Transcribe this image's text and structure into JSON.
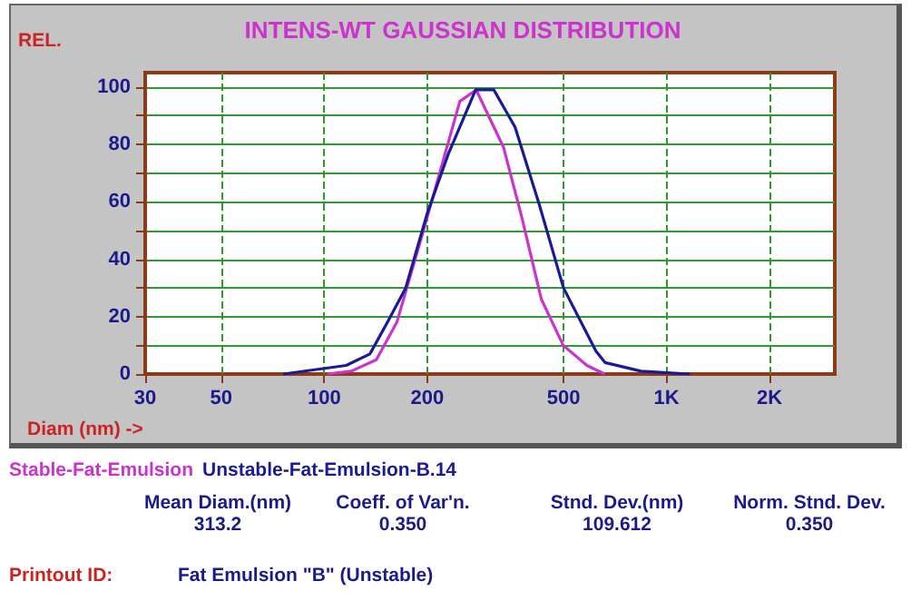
{
  "chart_data": {
    "type": "line",
    "title": "INTENS-WT GAUSSIAN DISTRIBUTION",
    "xlabel": "Diam (nm) ->",
    "ylabel": "REL.",
    "log": "x",
    "xlim": [
      30,
      3100
    ],
    "xticks": [
      30,
      50,
      100,
      200,
      500,
      {
        "value": 1000,
        "label": "1K"
      },
      {
        "value": 2000,
        "label": "2K"
      }
    ],
    "ylim": [
      0,
      105
    ],
    "yticks": [
      0,
      {
        "value": 10,
        "label": null
      },
      20,
      {
        "value": 30,
        "label": null
      },
      40,
      {
        "value": 50,
        "label": null
      },
      60,
      {
        "value": 70,
        "label": null
      },
      80,
      {
        "value": 90,
        "label": null
      },
      100
    ],
    "grid": true,
    "legend": "bottom left",
    "marker": "none",
    "line_style": "solid",
    "series": [
      {
        "name": "Stable-Fat-Emulsion",
        "color": "#cc33cc",
        "x": [
          102,
          120,
          142,
          163,
          195,
          249,
          278,
          334,
          377,
          431,
          499,
          585,
          660
        ],
        "values": [
          0,
          1,
          5,
          18,
          50,
          95,
          99,
          79,
          55,
          26,
          10,
          3,
          0
        ]
      },
      {
        "name": "Unstable-Fat-Emulsion-B.14",
        "color": "#1a1a99",
        "x": [
          76,
          116,
          136,
          153,
          173,
          200,
          231,
          277,
          313,
          361,
          425,
          500,
          622,
          661,
          843,
          1170
        ],
        "values": [
          0,
          3,
          7,
          18,
          30,
          56,
          77,
          99,
          99,
          86,
          59,
          30,
          8,
          4,
          1,
          0
        ]
      }
    ],
    "annotations": [
      "Mean Diam.(nm)",
      "313.2",
      "Coeff. of Var'n.",
      "0.350",
      "Stnd. Dev.(nm)",
      "109.612",
      "Norm. Stnd. Dev.",
      "0.350",
      "Printout ID:",
      "Fat Emulsion \"B\" (Unstable)"
    ]
  }
}
